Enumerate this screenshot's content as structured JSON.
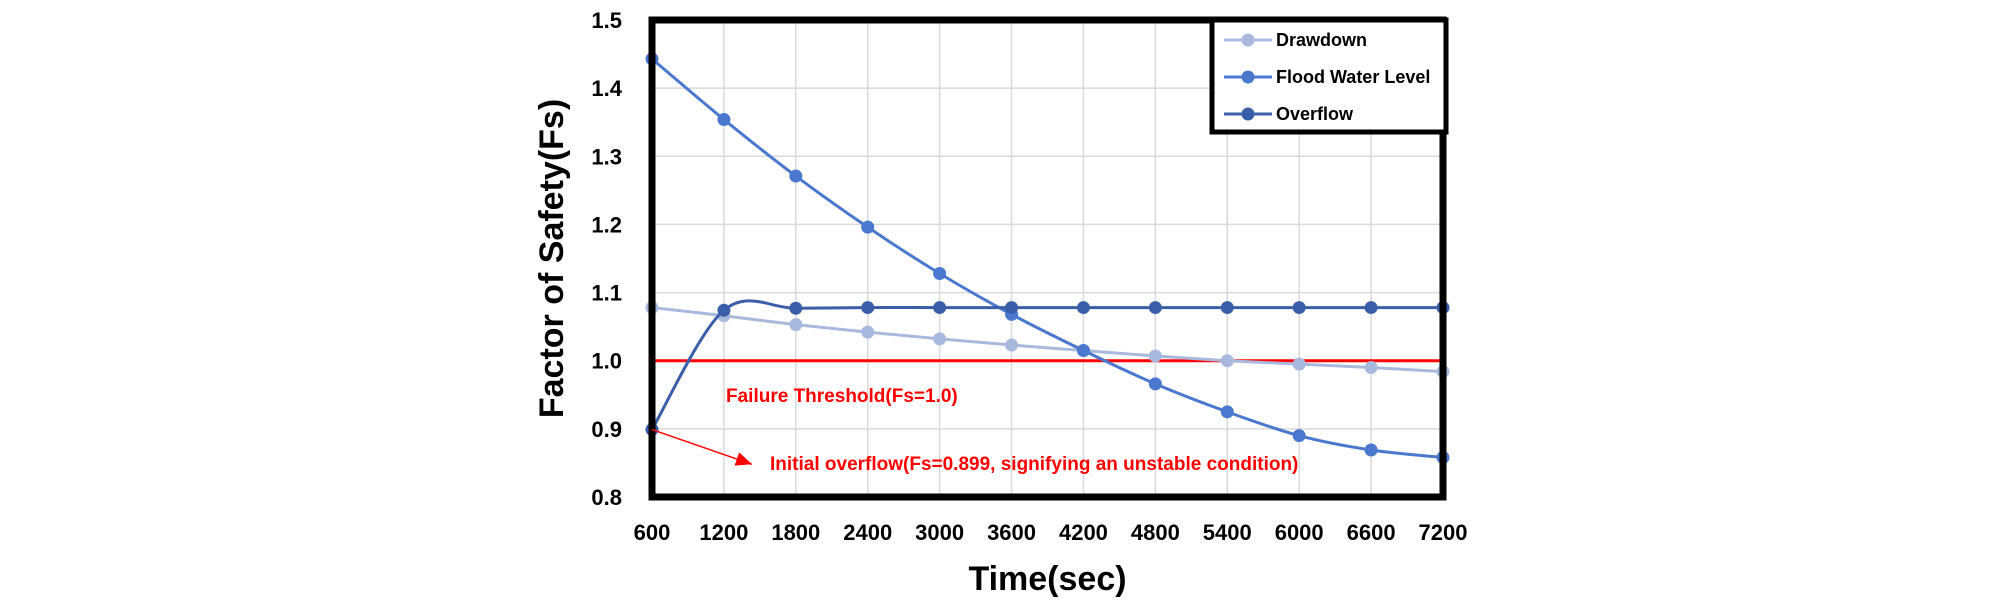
{
  "chart_data": {
    "type": "line",
    "title": "",
    "xlabel": "Time(sec)",
    "ylabel": "Factor of Safety(Fs)",
    "xlim": [
      600,
      7200
    ],
    "ylim": [
      0.8,
      1.5
    ],
    "x_ticks": [
      "600",
      "1200",
      "1800",
      "2400",
      "3000",
      "3600",
      "4200",
      "4800",
      "5400",
      "6000",
      "6600",
      "7200"
    ],
    "y_ticks": [
      "0.8",
      "0.9",
      "1.0",
      "1.1",
      "1.2",
      "1.3",
      "1.4",
      "1.5"
    ],
    "grid": "vertical and horizontal",
    "legend_position": "top-right",
    "x": [
      600,
      1200,
      1800,
      2400,
      3000,
      3600,
      4200,
      4800,
      5400,
      6000,
      6600,
      7200
    ],
    "series": [
      {
        "name": "Drawdown",
        "color": "#a9b9dd",
        "values": [
          1.078,
          1.066,
          1.053,
          1.042,
          1.032,
          1.023,
          1.015,
          1.007,
          1.0,
          0.995,
          0.99,
          0.984
        ]
      },
      {
        "name": "Flood Water Level",
        "color": "#4a78cf",
        "values": [
          1.443,
          1.354,
          1.271,
          1.196,
          1.128,
          1.068,
          1.015,
          0.966,
          0.925,
          0.89,
          0.869,
          0.858
        ]
      },
      {
        "name": "Overflow",
        "color": "#3a5ea8",
        "values": [
          0.899,
          1.074,
          1.077,
          1.078,
          1.078,
          1.078,
          1.078,
          1.078,
          1.078,
          1.078,
          1.078,
          1.078
        ]
      }
    ],
    "threshold": {
      "value": 1.0,
      "color": "#ff0000",
      "label": "Failure Threshold(Fs=1.0)"
    },
    "annotations": [
      {
        "text": "Initial overflow(Fs=0.899, signifying an unstable condition)",
        "color": "#ff0000",
        "x": 600,
        "y": 0.899
      }
    ]
  }
}
